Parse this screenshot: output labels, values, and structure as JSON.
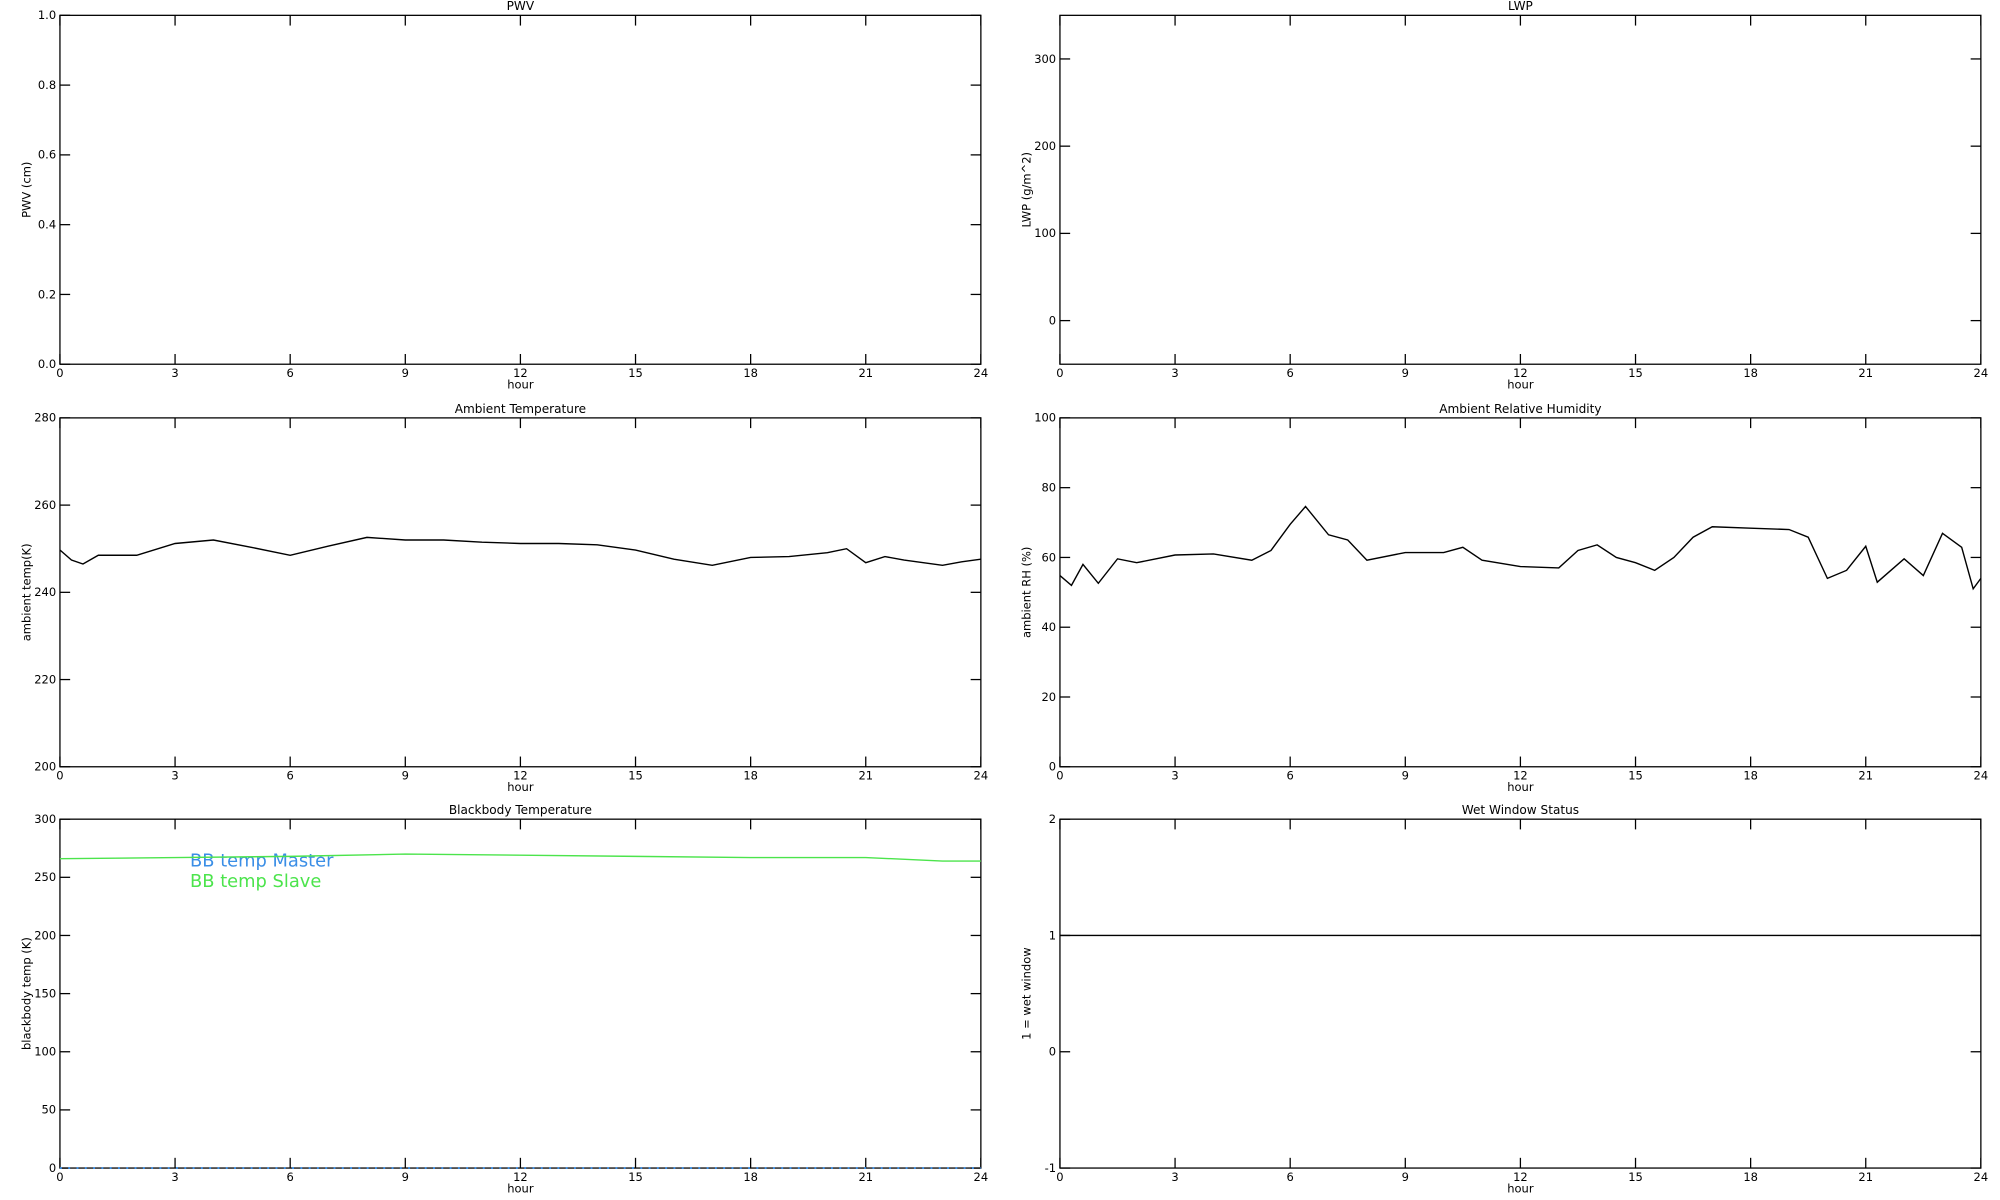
{
  "chart_data": [
    {
      "type": "line",
      "title": "PWV",
      "xlabel": "hour",
      "ylabel": "PWV (cm)",
      "xlim": [
        0,
        24
      ],
      "xticks": [
        0,
        3,
        6,
        9,
        12,
        15,
        18,
        21,
        24
      ],
      "ylim": [
        0,
        1
      ],
      "yticks": [
        {
          "value": 0,
          "label": "0.0"
        },
        0.2,
        0.4,
        0.6,
        0.8,
        {
          "value": 1,
          "label": "1.0"
        }
      ]
    },
    {
      "type": "line",
      "title": "LWP",
      "xlabel": "hour",
      "ylabel": "LWP (g/m^2)",
      "xlim": [
        0,
        24
      ],
      "xticks": [
        0,
        3,
        6,
        9,
        12,
        15,
        18,
        21,
        24
      ],
      "ylim": [
        -50,
        350
      ],
      "yticks": [
        0,
        100,
        200,
        300
      ]
    },
    {
      "type": "line",
      "title": "Ambient Temperature",
      "xlabel": "hour",
      "ylabel": "ambient temp(K)",
      "xlim": [
        0,
        24
      ],
      "xticks": [
        0,
        3,
        6,
        9,
        12,
        15,
        18,
        21,
        24
      ],
      "ylim": [
        200,
        280
      ],
      "yticks": [
        200,
        220,
        240,
        260,
        280
      ],
      "x": [
        0,
        0.3,
        0.6,
        1,
        2,
        3,
        4,
        5,
        6,
        7,
        8,
        9,
        10,
        11,
        12,
        13,
        14,
        15,
        16,
        17,
        18,
        19,
        20,
        20.5,
        21,
        21.5,
        22,
        23,
        23.5,
        24
      ],
      "series": [
        {
          "color": "#000000",
          "values": [
            249.7,
            247.4,
            246.5,
            248.5,
            248.5,
            251.2,
            252,
            250.3,
            248.5,
            250.6,
            252.6,
            252,
            252,
            251.5,
            251.2,
            251.2,
            250.9,
            249.7,
            247.6,
            246.2,
            248,
            248.2,
            249.1,
            250,
            246.8,
            248.2,
            247.4,
            246.2,
            247,
            247.6
          ]
        }
      ]
    },
    {
      "type": "line",
      "title": "Ambient Relative Humidity",
      "xlabel": "hour",
      "ylabel": "ambient RH (%)",
      "xlim": [
        0,
        24
      ],
      "xticks": [
        0,
        3,
        6,
        9,
        12,
        15,
        18,
        21,
        24
      ],
      "ylim": [
        0,
        100
      ],
      "yticks": [
        0,
        20,
        40,
        60,
        80,
        100
      ],
      "x": [
        0,
        0.3,
        0.6,
        1,
        1.5,
        2,
        3,
        4,
        5,
        5.5,
        6,
        6.4,
        7,
        7.5,
        8,
        9,
        10,
        10.5,
        11,
        12,
        13,
        13.5,
        14,
        14.5,
        15,
        15.5,
        16,
        16.5,
        17,
        18,
        19,
        19.5,
        20,
        20.5,
        21,
        21.3,
        22,
        22.5,
        23,
        23.5,
        23.8,
        24
      ],
      "series": [
        {
          "color": "#000000",
          "values": [
            54.8,
            52,
            58,
            52.6,
            59.6,
            58.5,
            60.7,
            61,
            59.2,
            62,
            69.5,
            74.6,
            66.5,
            65,
            59.2,
            61.4,
            61.4,
            62.9,
            59.2,
            57.4,
            57,
            62,
            63.6,
            60,
            58.5,
            56.3,
            60,
            65.8,
            68.8,
            68.4,
            68,
            65.8,
            54,
            56.3,
            63.2,
            52.9,
            59.6,
            54.8,
            66.9,
            62.9,
            51,
            54
          ]
        }
      ]
    },
    {
      "type": "line",
      "title": "Blackbody Temperature",
      "xlabel": "hour",
      "ylabel": "blackbody temp (K)",
      "xlim": [
        0,
        24
      ],
      "xticks": [
        0,
        3,
        6,
        9,
        12,
        15,
        18,
        21,
        24
      ],
      "ylim": [
        0,
        300
      ],
      "yticks": [
        0,
        50,
        100,
        150,
        200,
        250,
        300
      ],
      "legend": "upper left",
      "x": [
        0,
        3,
        6,
        9,
        12,
        15,
        18,
        21,
        23,
        24
      ],
      "series": [
        {
          "name": "BB temp Master",
          "color": "#3a8ee6",
          "values": [
            0,
            0,
            0,
            0,
            0,
            0,
            0,
            0,
            0,
            0
          ]
        },
        {
          "name": "BB temp Slave",
          "color": "#4ce44c",
          "values": [
            266,
            267,
            268,
            270,
            269,
            268,
            267,
            267,
            264,
            264
          ]
        }
      ]
    },
    {
      "type": "line",
      "title": "Wet Window Status",
      "xlabel": "hour",
      "ylabel": "1 = wet window",
      "xlim": [
        0,
        24
      ],
      "xticks": [
        0,
        3,
        6,
        9,
        12,
        15,
        18,
        21,
        24
      ],
      "ylim": [
        -1,
        2
      ],
      "yticks": [
        -1,
        0,
        1,
        2
      ],
      "x": [
        0,
        24
      ],
      "series": [
        {
          "color": "#000000",
          "values": [
            1,
            1
          ]
        }
      ]
    }
  ]
}
